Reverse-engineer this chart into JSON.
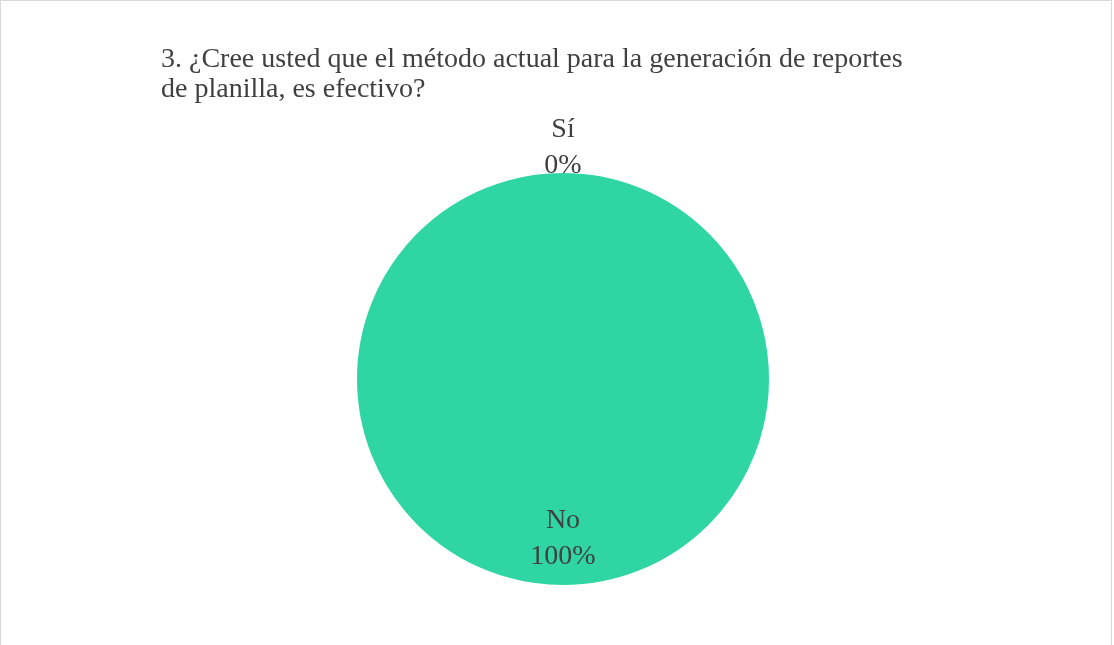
{
  "chart_data": {
    "type": "pie",
    "title": "3. ¿Cree usted que el método actual para la generación de reportes de planilla, es efectivo?",
    "categories": [
      "Sí",
      "No"
    ],
    "values": [
      0,
      100
    ],
    "colors": [
      "#2fd6a3",
      "#2fd6a3"
    ],
    "value_labels": [
      "0%",
      "100%"
    ],
    "legend": false
  }
}
